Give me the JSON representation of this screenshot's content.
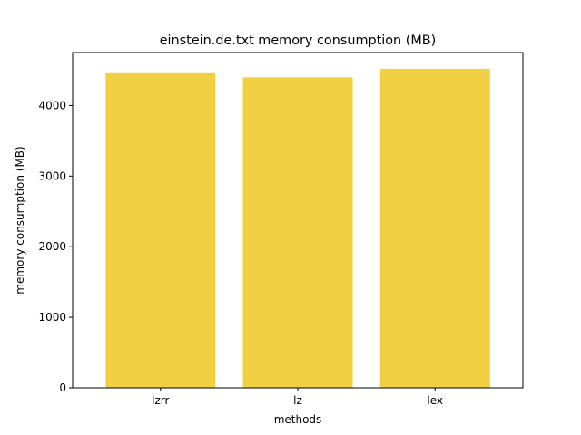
{
  "chart_data": {
    "type": "bar",
    "title": "einstein.de.txt memory consumption (MB)",
    "xlabel": "methods",
    "ylabel": "memory consumption (MB)",
    "categories": [
      "lzrr",
      "lz",
      "lex"
    ],
    "values": [
      4470,
      4400,
      4520
    ],
    "ylim": [
      0,
      4750
    ],
    "yticks": [
      0,
      1000,
      2000,
      3000,
      4000
    ],
    "ytick_labels": [
      "0",
      "1000",
      "2000",
      "3000",
      "4000"
    ],
    "bar_color": "#f2d043",
    "grid": false,
    "legend": "none"
  }
}
